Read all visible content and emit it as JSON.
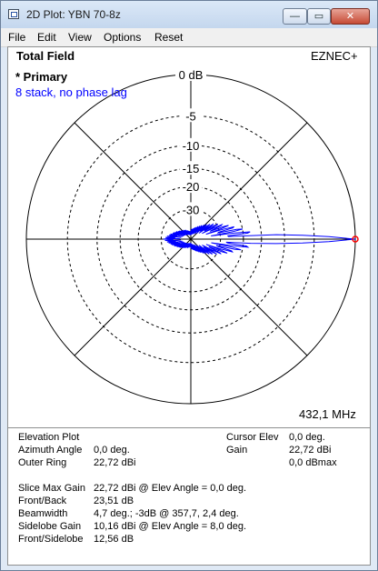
{
  "window": {
    "title": "2D Plot: YBN 70-8z"
  },
  "menu": [
    "File",
    "Edit",
    "View",
    "Options",
    "Reset"
  ],
  "window_buttons": {
    "minimize": "—",
    "maximize": "▭",
    "close": "✕"
  },
  "plot": {
    "heading": "Total Field",
    "brand": "EZNEC+",
    "trace_name": "* Primary",
    "description": "8 stack, no phase lag",
    "frequency": "432,1 MHz",
    "ring_labels": [
      "0 dB",
      "-5",
      "-10",
      "-15",
      "-20",
      "-30"
    ],
    "colors": {
      "pattern": "#0000ff",
      "cursor": "#ff0000",
      "grid": "#000000"
    }
  },
  "info": {
    "left": [
      {
        "label": "Elevation Plot",
        "value": ""
      },
      {
        "label": "Azimuth Angle",
        "value": "0,0 deg."
      },
      {
        "label": "Outer Ring",
        "value": "22,72 dBi"
      }
    ],
    "right": [
      {
        "label": "Cursor Elev",
        "value": "0,0 deg."
      },
      {
        "label": "Gain",
        "value": "22,72 dBi"
      },
      {
        "label": "",
        "value": "0,0 dBmax"
      }
    ],
    "details": [
      {
        "label": "Slice Max Gain",
        "value": "22,72 dBi @ Elev Angle = 0,0 deg."
      },
      {
        "label": "Front/Back",
        "value": "23,51 dB"
      },
      {
        "label": "Beamwidth",
        "value": "4,7 deg.; -3dB @ 357,7, 2,4 deg."
      },
      {
        "label": "Sidelobe Gain",
        "value": "10,16 dBi @ Elev Angle = 8,0 deg."
      },
      {
        "label": "Front/Sidelobe",
        "value": "12,56 dB"
      }
    ]
  }
}
